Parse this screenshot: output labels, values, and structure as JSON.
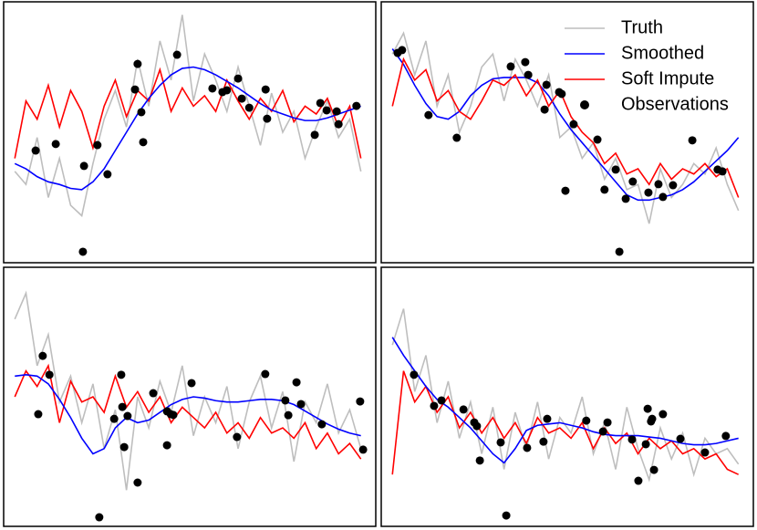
{
  "chart_data": [
    {
      "type": "line",
      "xlim": [
        0,
        100
      ],
      "ylim": [
        0,
        100
      ],
      "x": [
        3,
        6,
        9,
        12,
        15,
        18,
        21,
        24,
        27,
        30,
        33,
        36,
        39,
        42,
        45,
        48,
        51,
        54,
        57,
        60,
        63,
        66,
        69,
        72,
        75,
        78,
        81,
        84,
        87,
        90,
        93,
        96
      ],
      "series": [
        {
          "color": "#bebebe",
          "values": [
            35,
            30,
            48,
            25,
            40,
            22,
            18,
            38,
            55,
            66,
            52,
            78,
            60,
            85,
            70,
            95,
            62,
            80,
            70,
            58,
            75,
            60,
            45,
            65,
            50,
            58,
            40,
            52,
            62,
            48,
            55,
            35
          ]
        },
        {
          "color": "#ff0000",
          "values": [
            40,
            62,
            55,
            68,
            52,
            66,
            58,
            44,
            60,
            70,
            56,
            66,
            62,
            74,
            58,
            67,
            60,
            64,
            58,
            70,
            62,
            55,
            63,
            58,
            66,
            54,
            60,
            57,
            63,
            52,
            60,
            40
          ]
        },
        {
          "color": "#0000ff",
          "values": [
            38,
            36,
            33,
            31,
            30,
            28.5,
            28,
            31,
            36,
            43,
            50,
            57,
            63,
            68,
            72,
            74.5,
            75,
            74,
            72,
            69.5,
            67,
            64,
            61,
            58.5,
            57,
            55.5,
            54.5,
            54.5,
            55.5,
            57,
            58.5,
            60
          ]
        },
        {
          "color": "#000000",
          "x": [
            8.6,
            14,
            21.3,
            21.6,
            25.2,
            27.9,
            36,
            35.3,
            37,
            37.5,
            46.6,
            56.1,
            58.8,
            60,
            63,
            64,
            66,
            70.4,
            70.8,
            85.1,
            86.8,
            89.5,
            83.6,
            90,
            94.8
          ],
          "values": [
            43,
            45.5,
            4.2,
            37.1,
            45.1,
            33.9,
            76.2,
            66.4,
            57.7,
            46.2,
            79.7,
            66.8,
            65.4,
            66.1,
            70.6,
            62.9,
            59.4,
            66.4,
            55.2,
            61.2,
            58.4,
            58,
            49,
            53.1,
            60.1
          ]
        }
      ]
    },
    {
      "type": "line",
      "xlim": [
        0,
        100
      ],
      "ylim": [
        0,
        100
      ],
      "legend": "topright",
      "x": [
        3,
        6,
        9,
        12,
        15,
        18,
        21,
        24,
        27,
        30,
        33,
        36,
        39,
        42,
        45,
        48,
        51,
        54,
        57,
        60,
        63,
        66,
        69,
        72,
        75,
        78,
        81,
        84,
        87,
        90,
        93,
        96
      ],
      "series": [
        {
          "name": "Truth",
          "color": "#bebebe",
          "values": [
            80,
            88,
            72,
            85,
            60,
            72,
            50,
            60,
            75,
            80,
            62,
            78,
            70,
            60,
            72,
            48,
            52,
            40,
            46,
            32,
            40,
            28,
            30,
            15,
            36,
            25,
            30,
            38,
            34,
            44,
            30,
            20
          ]
        },
        {
          "name": "Smoothed",
          "color": "#0000ff",
          "values": [
            82,
            76,
            68,
            61,
            56,
            55,
            58,
            64,
            68,
            70.5,
            71,
            71,
            71,
            69,
            64,
            57,
            51,
            46,
            41,
            36,
            31,
            26,
            24,
            24,
            25,
            26,
            28,
            31,
            35,
            39,
            43,
            48
          ]
        },
        {
          "name": "Soft Impute",
          "color": "#ff0000",
          "values": [
            60,
            78,
            70,
            74,
            62,
            66,
            58,
            55,
            62,
            70,
            68,
            72,
            64,
            70,
            60,
            66,
            56,
            50,
            46,
            38,
            42,
            34,
            36,
            30,
            38,
            32,
            36,
            34,
            38,
            33,
            36,
            25
          ]
        },
        {
          "name": "Observations",
          "color": "#000000",
          "x": [
            4.4,
            5.6,
            12.7,
            20.3,
            34.8,
            38.7,
            39.5,
            44.4,
            47.8,
            48.5,
            43.9,
            51.7,
            58.1,
            49.5,
            60,
            63,
            65.7,
            67.6,
            71.8,
            74.5,
            75.7,
            78.4,
            83.6,
            90.4,
            91.7,
            64
          ],
          "values": [
            80.4,
            81.5,
            56.6,
            47.9,
            75.2,
            76.9,
            72,
            68.2,
            65.4,
            64.7,
            58.7,
            53.1,
            47.2,
            27.6,
            28,
            35.7,
            24.5,
            31.1,
            26.9,
            30.1,
            25.2,
            29.7,
            46.9,
            35.7,
            35,
            4.2
          ]
        }
      ]
    },
    {
      "type": "line",
      "xlim": [
        0,
        100
      ],
      "ylim": [
        0,
        100
      ],
      "x": [
        3,
        6,
        9,
        12,
        15,
        18,
        21,
        24,
        27,
        30,
        33,
        36,
        39,
        42,
        45,
        48,
        51,
        54,
        57,
        60,
        63,
        66,
        69,
        72,
        75,
        78,
        81,
        84,
        87,
        90,
        93,
        96
      ],
      "series": [
        {
          "color": "#bebebe",
          "values": [
            80,
            90,
            62,
            74,
            48,
            58,
            40,
            55,
            30,
            45,
            14,
            50,
            38,
            56,
            44,
            62,
            35,
            50,
            40,
            54,
            30,
            48,
            58,
            38,
            52,
            25,
            48,
            40,
            55,
            36,
            45,
            30
          ]
        },
        {
          "color": "#ff0000",
          "values": [
            50,
            60,
            54,
            62,
            40,
            56,
            48,
            50,
            44,
            58,
            46,
            52,
            44,
            50,
            40,
            46,
            42,
            38,
            44,
            36,
            40,
            34,
            42,
            36,
            38,
            34,
            40,
            30,
            36,
            28,
            32,
            26
          ]
        },
        {
          "color": "#0000ff",
          "values": [
            58,
            58.5,
            58,
            55,
            49,
            42,
            34,
            28,
            30,
            38,
            42,
            40,
            41,
            44,
            47,
            49,
            50,
            49.5,
            48.5,
            48,
            48,
            48.5,
            49,
            49,
            48.5,
            47,
            44.5,
            42,
            39.5,
            37.5,
            36,
            35
          ]
        },
        {
          "color": "#000000",
          "x": [
            10.5,
            12.3,
            9.3,
            31.6,
            31.9,
            33.3,
            29.7,
            32.4,
            36,
            25.7,
            40.2,
            43.9,
            44.9,
            45.6,
            43.9,
            50.5,
            62.7,
            70.3,
            75.7,
            78.7,
            79.9,
            76.5,
            85.5,
            95.8,
            96.6
          ],
          "values": [
            65.8,
            58.5,
            43.3,
            58.5,
            46.1,
            42.6,
            41.5,
            30.6,
            16.9,
            3.5,
            51.4,
            44.4,
            43.3,
            43,
            31.3,
            55.3,
            34.5,
            58.8,
            48.6,
            55.6,
            47.2,
            42.9,
            39.4,
            48.2,
            29.6
          ]
        }
      ]
    },
    {
      "type": "line",
      "xlim": [
        0,
        100
      ],
      "ylim": [
        0,
        100
      ],
      "x": [
        3,
        6,
        9,
        12,
        15,
        18,
        21,
        24,
        27,
        30,
        33,
        36,
        39,
        42,
        45,
        48,
        51,
        54,
        57,
        60,
        63,
        66,
        69,
        72,
        75,
        78,
        81,
        84,
        87,
        90,
        93,
        96
      ],
      "series": [
        {
          "color": "#bebebe",
          "values": [
            70,
            84,
            52,
            66,
            40,
            56,
            34,
            48,
            28,
            46,
            22,
            44,
            30,
            48,
            26,
            42,
            36,
            50,
            28,
            40,
            22,
            46,
            30,
            18,
            38,
            26,
            36,
            20,
            34,
            28,
            30,
            24
          ]
        },
        {
          "color": "#ff0000",
          "values": [
            20,
            60,
            48,
            54,
            44,
            50,
            38,
            44,
            36,
            42,
            34,
            40,
            32,
            42,
            36,
            38,
            34,
            40,
            30,
            38,
            32,
            36,
            28,
            34,
            30,
            33,
            28,
            30,
            26,
            28,
            22,
            20
          ]
        },
        {
          "color": "#0000ff",
          "values": [
            73,
            66,
            60,
            54,
            49,
            46,
            42,
            38,
            33,
            28,
            24.5,
            30,
            37,
            39,
            39.5,
            40,
            39,
            38,
            36.5,
            35.5,
            35,
            35,
            35,
            34.5,
            34,
            33,
            32,
            31.5,
            31.5,
            32,
            33,
            34
          ]
        },
        {
          "color": "#000000",
          "x": [
            8.8,
            14.2,
            16.2,
            22.1,
            25,
            25.7,
            26.5,
            32.1,
            33.6,
            39.2,
            43.6,
            44.6,
            55.1,
            59.6,
            60.8,
            69.1,
            71.1,
            71.6,
            72.8,
            73.3,
            72.5,
            75.7,
            80.4,
            87,
            92.6,
            67.4
          ],
          "values": [
            58.5,
            46.5,
            48.6,
            45.1,
            40.1,
            38.7,
            25.4,
            32.4,
            4.2,
            30.3,
            32.7,
            41.5,
            40.8,
            36.6,
            40.1,
            17.6,
            31.7,
            45.4,
            41.5,
            21.8,
            40.5,
            43.3,
            33.8,
            28.5,
            34.9,
            33.5
          ]
        }
      ]
    }
  ]
}
